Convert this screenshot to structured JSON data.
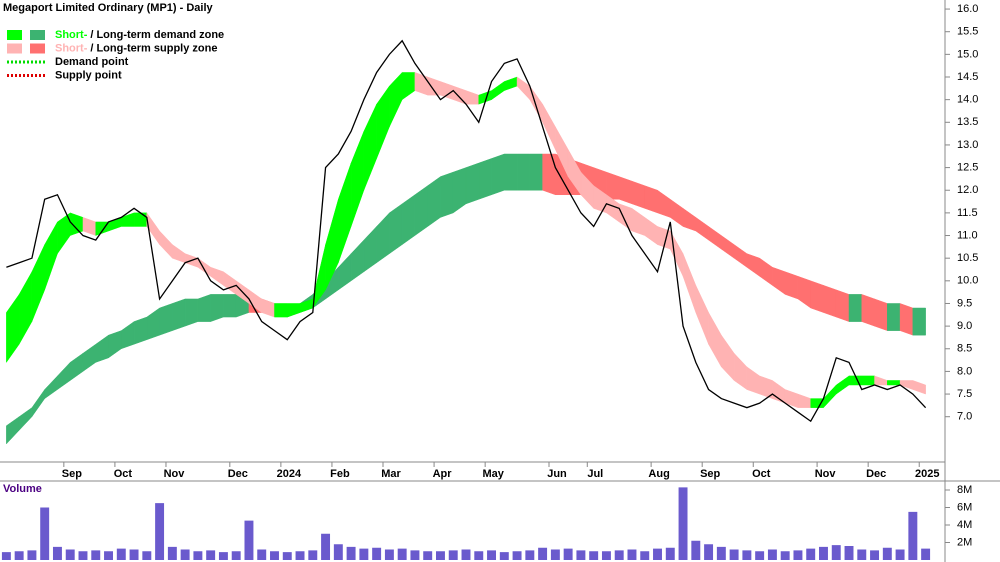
{
  "chart_data": {
    "type": "price-zones",
    "title": "Megaport Limited Ordinary (MP1) - Daily",
    "categories": [
      null,
      null,
      null,
      null,
      null,
      "Sep",
      null,
      null,
      null,
      "Oct",
      null,
      null,
      null,
      "Nov",
      null,
      null,
      null,
      null,
      "Dec",
      null,
      null,
      null,
      "2024",
      null,
      null,
      null,
      "Feb",
      null,
      null,
      null,
      "Mar",
      null,
      null,
      null,
      "Apr",
      null,
      null,
      null,
      "May",
      null,
      null,
      null,
      null,
      "Jun",
      null,
      null,
      "Jul",
      null,
      null,
      null,
      null,
      "Aug",
      null,
      null,
      null,
      "Sep",
      null,
      null,
      null,
      "Oct",
      null,
      null,
      null,
      null,
      "Nov",
      null,
      null,
      null,
      "Dec",
      null,
      null,
      null,
      "2025"
    ],
    "series": [
      {
        "name": "Close",
        "color": "#000000",
        "values": [
          10.3,
          10.4,
          10.5,
          11.8,
          11.9,
          11.3,
          11.0,
          10.9,
          11.3,
          11.4,
          11.6,
          11.4,
          9.6,
          10.0,
          10.4,
          10.5,
          10.0,
          9.8,
          9.9,
          9.6,
          9.1,
          8.9,
          8.7,
          9.1,
          9.3,
          12.5,
          12.8,
          13.3,
          14.0,
          14.6,
          15.0,
          15.3,
          14.8,
          14.4,
          14.0,
          14.2,
          13.9,
          13.5,
          14.4,
          14.8,
          14.9,
          14.3,
          13.4,
          12.5,
          12.0,
          11.5,
          11.2,
          11.7,
          11.6,
          11.0,
          10.6,
          10.2,
          11.3,
          9.0,
          8.2,
          7.6,
          7.4,
          7.3,
          7.2,
          7.3,
          7.5,
          7.3,
          7.1,
          6.9,
          7.4,
          8.3,
          8.2,
          7.6,
          7.7,
          7.6,
          7.7,
          7.5,
          7.2
        ]
      }
    ],
    "short_zone": {
      "demand_color": "#00ff00",
      "supply_color": "#ffb3b3",
      "upper": [
        9.3,
        9.7,
        10.2,
        10.8,
        11.3,
        11.5,
        11.4,
        11.3,
        11.3,
        11.4,
        11.5,
        11.5,
        11.1,
        10.8,
        10.6,
        10.5,
        10.3,
        10.2,
        10.0,
        9.8,
        9.6,
        9.5,
        9.5,
        9.5,
        9.6,
        10.8,
        11.8,
        12.6,
        13.3,
        13.9,
        14.3,
        14.6,
        14.6,
        14.5,
        14.4,
        14.3,
        14.2,
        14.1,
        14.2,
        14.4,
        14.5,
        14.3,
        13.9,
        13.4,
        12.9,
        12.4,
        12.1,
        11.9,
        11.7,
        11.6,
        11.4,
        11.2,
        11.1,
        10.6,
        9.9,
        9.3,
        8.8,
        8.4,
        8.1,
        7.9,
        7.8,
        7.6,
        7.5,
        7.4,
        7.4,
        7.7,
        7.9,
        7.9,
        7.9,
        7.8,
        7.8,
        7.8,
        7.7
      ],
      "lower": [
        8.2,
        8.6,
        9.1,
        9.8,
        10.6,
        11.0,
        11.1,
        11.0,
        11.1,
        11.2,
        11.2,
        11.2,
        10.8,
        10.5,
        10.4,
        10.3,
        10.1,
        9.9,
        9.7,
        9.5,
        9.3,
        9.2,
        9.2,
        9.3,
        9.4,
        9.8,
        10.4,
        11.2,
        12.0,
        12.7,
        13.4,
        14.0,
        14.2,
        14.1,
        14.1,
        14.0,
        13.9,
        13.9,
        14.0,
        14.2,
        14.3,
        14.0,
        13.5,
        12.9,
        12.3,
        11.9,
        11.6,
        11.5,
        11.3,
        11.1,
        11.0,
        10.8,
        10.7,
        10.1,
        9.3,
        8.6,
        8.1,
        7.8,
        7.6,
        7.5,
        7.4,
        7.3,
        7.2,
        7.2,
        7.2,
        7.5,
        7.7,
        7.7,
        7.7,
        7.7,
        7.7,
        7.6,
        7.5
      ]
    },
    "long_zone": {
      "demand_color": "#3cb371",
      "supply_color": "#ff7070",
      "upper": [
        6.8,
        7.0,
        7.2,
        7.6,
        7.9,
        8.2,
        8.4,
        8.6,
        8.8,
        8.9,
        9.1,
        9.2,
        9.4,
        9.5,
        9.6,
        9.6,
        9.7,
        9.7,
        9.7,
        9.7,
        9.6,
        9.5,
        9.4,
        9.5,
        9.7,
        10.0,
        10.3,
        10.6,
        10.9,
        11.2,
        11.5,
        11.7,
        11.9,
        12.1,
        12.3,
        12.4,
        12.5,
        12.6,
        12.7,
        12.8,
        12.8,
        12.8,
        12.8,
        12.8,
        12.7,
        12.6,
        12.5,
        12.4,
        12.3,
        12.2,
        12.1,
        12.0,
        11.8,
        11.6,
        11.4,
        11.2,
        11.0,
        10.8,
        10.6,
        10.5,
        10.3,
        10.2,
        10.1,
        10.0,
        9.9,
        9.8,
        9.7,
        9.7,
        9.6,
        9.5,
        9.5,
        9.4,
        9.4
      ],
      "lower": [
        6.4,
        6.7,
        7.0,
        7.4,
        7.6,
        7.8,
        8.0,
        8.2,
        8.3,
        8.5,
        8.6,
        8.7,
        8.8,
        8.9,
        9.0,
        9.1,
        9.1,
        9.2,
        9.2,
        9.3,
        9.3,
        9.3,
        9.2,
        9.3,
        9.4,
        9.6,
        9.8,
        10.0,
        10.2,
        10.4,
        10.6,
        10.8,
        11.0,
        11.2,
        11.4,
        11.5,
        11.7,
        11.8,
        11.9,
        12.0,
        12.0,
        12.0,
        12.0,
        11.9,
        11.9,
        11.9,
        11.9,
        11.8,
        11.8,
        11.7,
        11.6,
        11.5,
        11.4,
        11.2,
        11.1,
        10.9,
        10.7,
        10.5,
        10.3,
        10.1,
        9.9,
        9.7,
        9.6,
        9.4,
        9.3,
        9.2,
        9.1,
        9.1,
        9.0,
        8.9,
        8.9,
        8.8,
        8.8
      ]
    },
    "ylim": [
      6.0,
      16.2
    ],
    "yticks": [
      {
        "value": 7,
        "label": "7.0"
      },
      {
        "value": 7.5,
        "label": "7.5"
      },
      {
        "value": 8,
        "label": "8.0"
      },
      {
        "value": 8.5,
        "label": "8.5"
      },
      {
        "value": 9,
        "label": "9.0"
      },
      {
        "value": 9.5,
        "label": "9.5"
      },
      {
        "value": 10,
        "label": "10.0"
      },
      {
        "value": 10.5,
        "label": "10.5"
      },
      {
        "value": 11,
        "label": "11.0"
      },
      {
        "value": 11.5,
        "label": "11.5"
      },
      {
        "value": 12,
        "label": "12.0"
      },
      {
        "value": 12.5,
        "label": "12.5"
      },
      {
        "value": 13,
        "label": "13.0"
      },
      {
        "value": 13.5,
        "label": "13.5"
      },
      {
        "value": 14,
        "label": "14.0"
      },
      {
        "value": 14.5,
        "label": "14.5"
      },
      {
        "value": 15,
        "label": "15.0"
      },
      {
        "value": 15.5,
        "label": "15.5"
      },
      {
        "value": 16,
        "label": "16.0"
      }
    ],
    "legend": [
      {
        "parts": [
          "Short-",
          "/",
          "Long-term demand zone"
        ],
        "colors": [
          "#00ff00",
          "#3cb371"
        ]
      },
      {
        "parts": [
          "Short-",
          "/",
          "Long-term supply zone"
        ],
        "colors": [
          "#ffb3b3",
          "#ff7070"
        ]
      },
      {
        "parts": [
          "Demand point"
        ],
        "colors": [
          "#00dd00"
        ]
      },
      {
        "parts": [
          "Supply point"
        ],
        "colors": [
          "#dd0000"
        ]
      }
    ],
    "volume": {
      "title": "Volume",
      "color": "#6a5acd",
      "values": [
        900000,
        1000000,
        1100000,
        6000000,
        1500000,
        1200000,
        1000000,
        1100000,
        1000000,
        1300000,
        1200000,
        1000000,
        6500000,
        1500000,
        1200000,
        1000000,
        1100000,
        900000,
        1000000,
        4500000,
        1200000,
        1000000,
        900000,
        1000000,
        1100000,
        3000000,
        1800000,
        1500000,
        1300000,
        1400000,
        1200000,
        1300000,
        1100000,
        1000000,
        1000000,
        1100000,
        1200000,
        1000000,
        1100000,
        900000,
        1000000,
        1100000,
        1400000,
        1200000,
        1300000,
        1100000,
        1000000,
        1000000,
        1100000,
        1200000,
        1000000,
        1300000,
        1400000,
        8300000,
        2200000,
        1800000,
        1500000,
        1200000,
        1100000,
        1000000,
        1200000,
        1000000,
        1100000,
        1300000,
        1500000,
        1700000,
        1600000,
        1200000,
        1100000,
        1400000,
        1200000,
        5500000,
        1300000
      ],
      "ylim": [
        0,
        8800000
      ],
      "yticks": [
        {
          "value": 2000000,
          "label": "2M"
        },
        {
          "value": 4000000,
          "label": "4M"
        },
        {
          "value": 6000000,
          "label": "6M"
        },
        {
          "value": 8000000,
          "label": "8M"
        }
      ]
    }
  }
}
